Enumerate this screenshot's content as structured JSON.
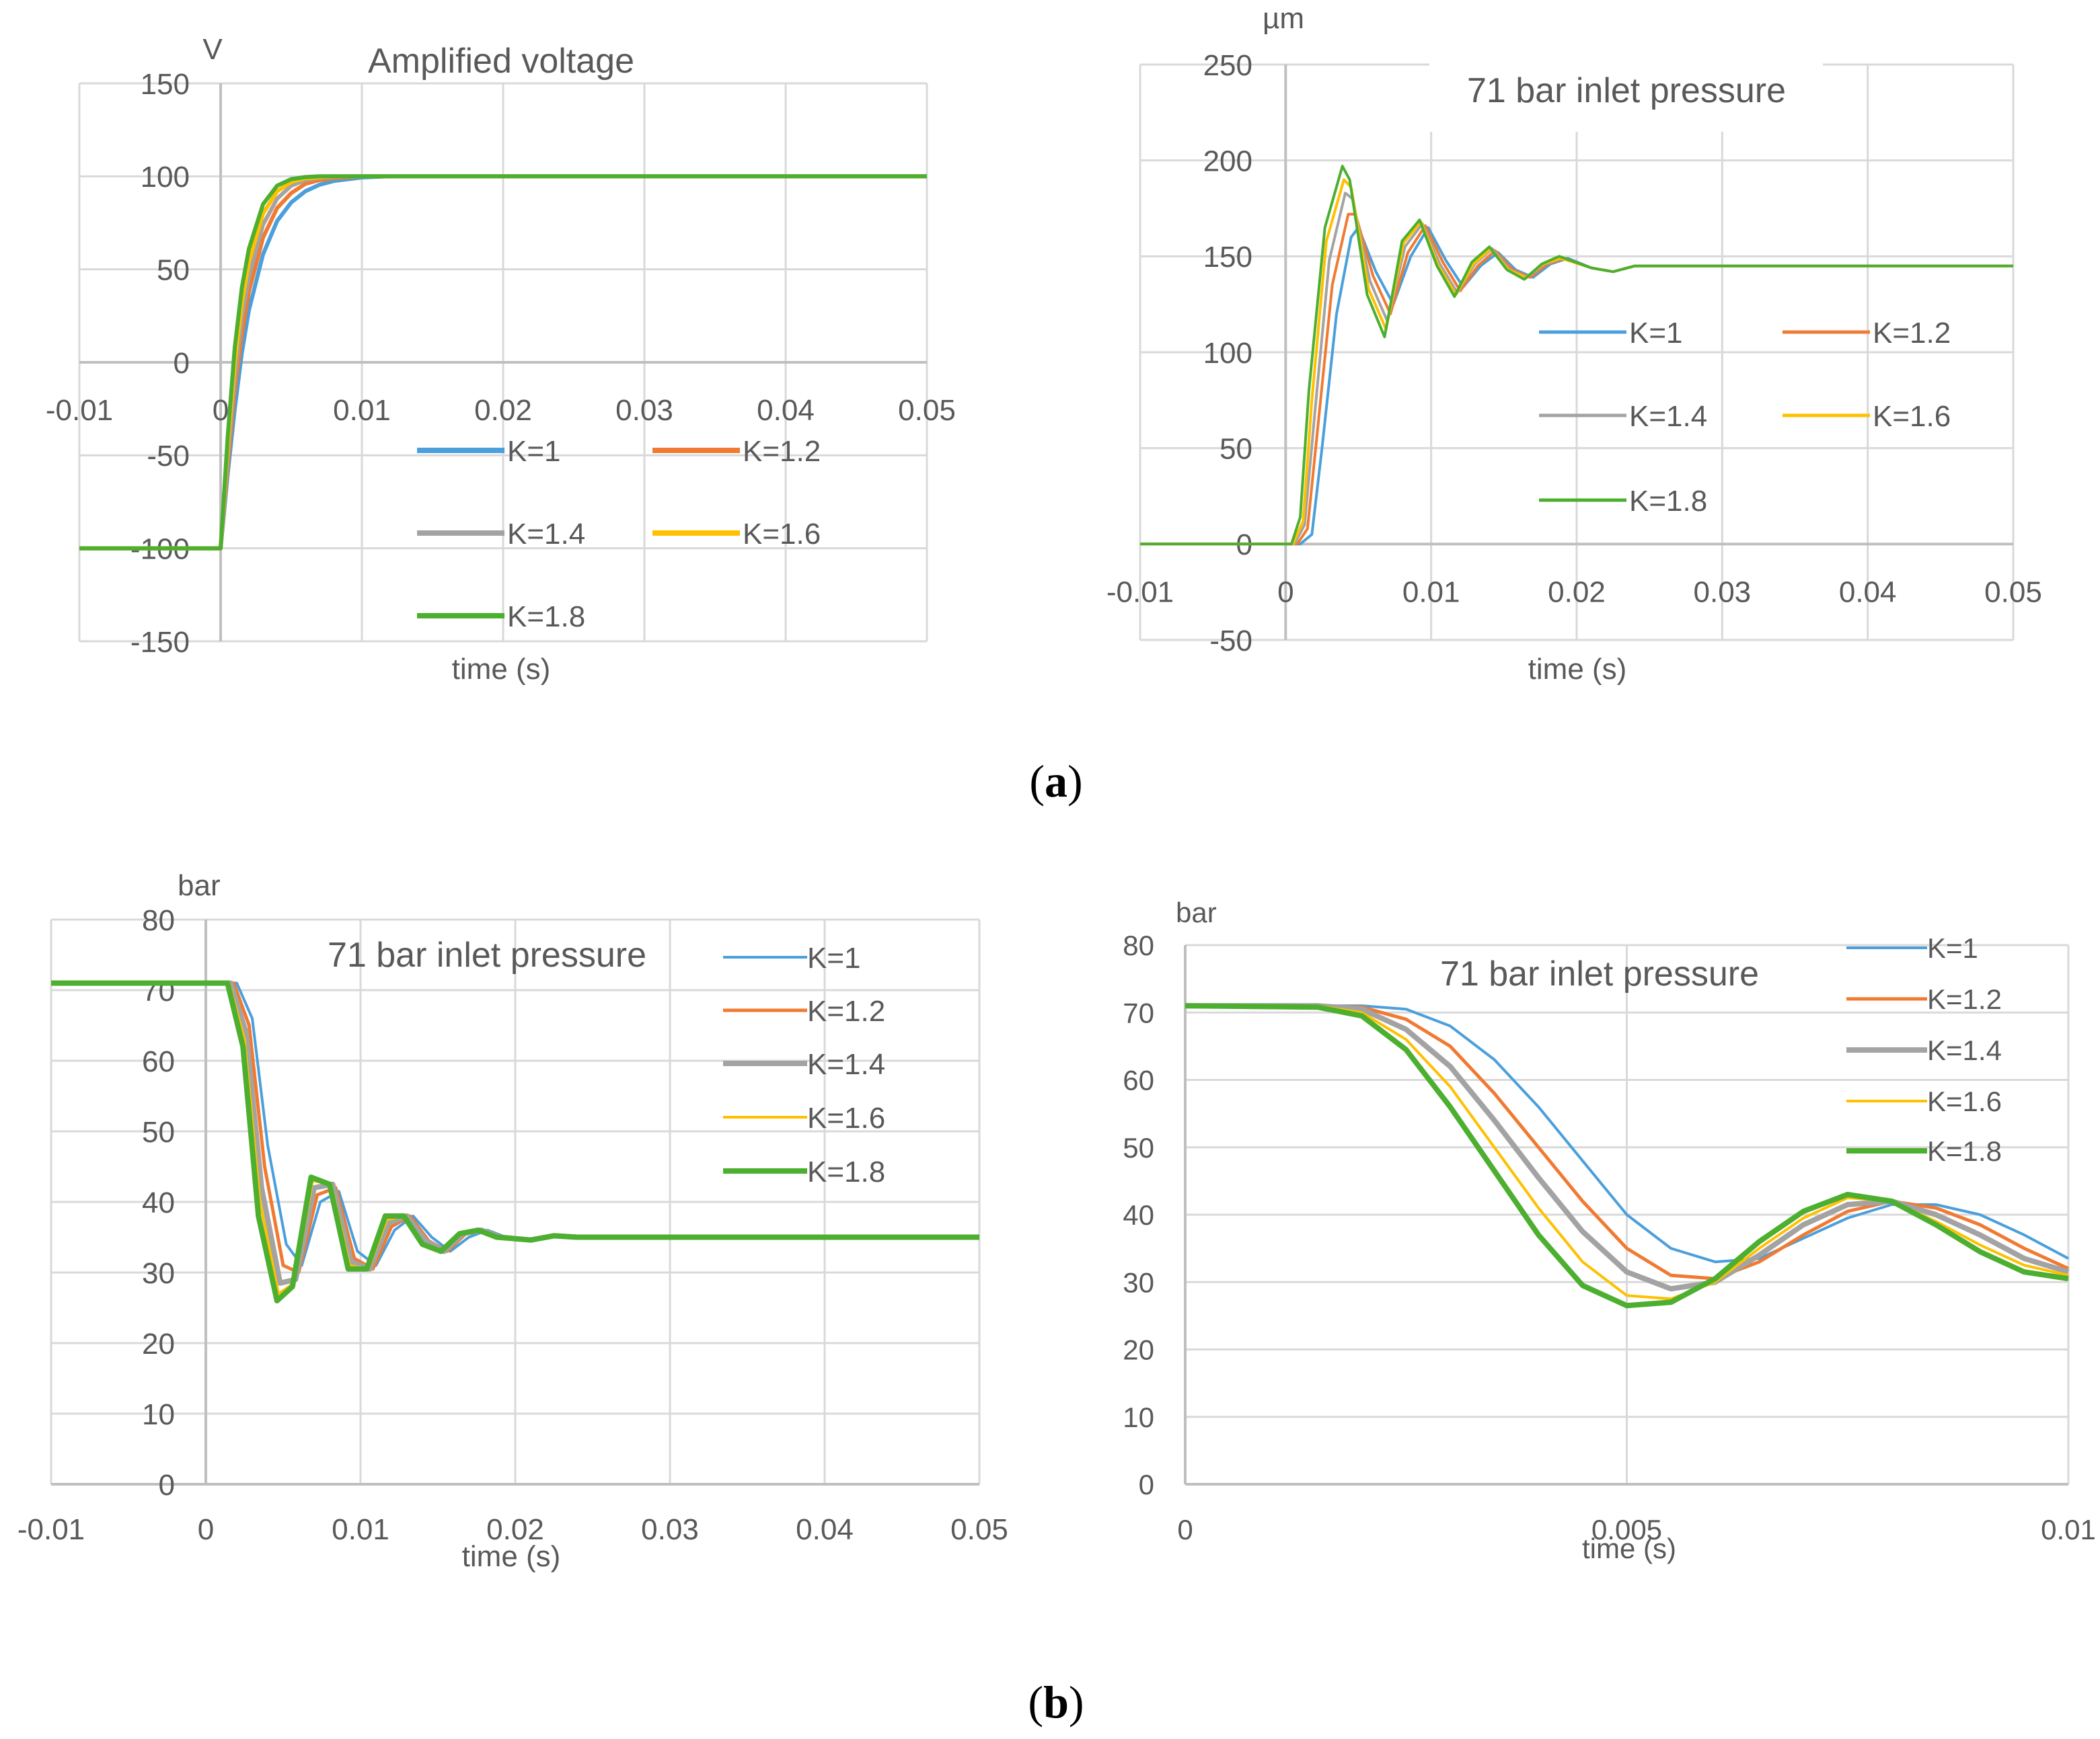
{
  "figure": {
    "label_a": "(a)",
    "label_b": "(b)",
    "label_a_bold": "a",
    "label_b_bold": "b"
  },
  "colors": {
    "K=1": "#4a9fdc",
    "K=1.2": "#f07a32",
    "K=1.4": "#a3a3a3",
    "K=1.6": "#ffc000",
    "K=1.8": "#4caf2f",
    "grid": "#d9d9d9",
    "axis": "#bfbfbf",
    "text": "#595959"
  },
  "chart_data": [
    {
      "id": "voltage",
      "type": "line",
      "title": "Amplified voltage",
      "unit_label": "V",
      "xlabel": "time (s)",
      "ylabel": "",
      "xlim": [
        -0.01,
        0.05
      ],
      "ylim": [
        -150,
        150
      ],
      "xticks": [
        -0.01,
        0,
        0.01,
        0.02,
        0.03,
        0.04,
        0.05
      ],
      "yticks": [
        -150,
        -100,
        -50,
        0,
        50,
        100,
        150
      ],
      "xtick_labels": [
        "-0.01",
        "0",
        "0.01",
        "0.02",
        "0.03",
        "0.04",
        "0.05"
      ],
      "ytick_labels": [
        "-150",
        "-100",
        "-50",
        "0",
        "50",
        "100",
        "150"
      ],
      "grid": true,
      "legend": "bottom-center, 2 columns",
      "series": [
        {
          "name": "K=1",
          "x": [
            -0.01,
            0,
            0.0005,
            0.001,
            0.0015,
            0.002,
            0.003,
            0.004,
            0.005,
            0.006,
            0.007,
            0.008,
            0.01,
            0.012,
            0.05
          ],
          "y": [
            -100,
            -100,
            -60,
            -25,
            5,
            28,
            58,
            76,
            86,
            92,
            95.5,
            97.5,
            99.4,
            100,
            100
          ]
        },
        {
          "name": "K=1.2",
          "x": [
            -0.01,
            0,
            0.0005,
            0.001,
            0.0015,
            0.002,
            0.003,
            0.004,
            0.005,
            0.006,
            0.007,
            0.008,
            0.01,
            0.05
          ],
          "y": [
            -100,
            -100,
            -55,
            -15,
            15,
            38,
            67,
            83,
            91,
            96,
            98,
            99,
            100,
            100
          ]
        },
        {
          "name": "K=1.4",
          "x": [
            -0.01,
            0,
            0.0005,
            0.001,
            0.0015,
            0.002,
            0.003,
            0.004,
            0.005,
            0.006,
            0.007,
            0.009,
            0.05
          ],
          "y": [
            -100,
            -100,
            -50,
            -8,
            24,
            46,
            74,
            88,
            95,
            98,
            99.3,
            100,
            100
          ]
        },
        {
          "name": "K=1.6",
          "x": [
            -0.01,
            0,
            0.0005,
            0.001,
            0.0015,
            0.002,
            0.003,
            0.004,
            0.005,
            0.006,
            0.008,
            0.05
          ],
          "y": [
            -100,
            -100,
            -45,
            0,
            32,
            54,
            80,
            92,
            97,
            99,
            100,
            100
          ]
        },
        {
          "name": "K=1.8",
          "x": [
            -0.01,
            0,
            0.0005,
            0.001,
            0.0015,
            0.002,
            0.003,
            0.004,
            0.005,
            0.006,
            0.007,
            0.05
          ],
          "y": [
            -100,
            -100,
            -40,
            8,
            40,
            61,
            85,
            95,
            98.5,
            99.6,
            100,
            100
          ]
        }
      ]
    },
    {
      "id": "displacement",
      "type": "line",
      "title": "71 bar inlet pressure",
      "unit_label": "µm",
      "xlabel": "time (s)",
      "ylabel": "",
      "xlim": [
        -0.01,
        0.05
      ],
      "ylim": [
        -50,
        250
      ],
      "xticks": [
        -0.01,
        0,
        0.01,
        0.02,
        0.03,
        0.04,
        0.05
      ],
      "yticks": [
        -50,
        0,
        50,
        100,
        150,
        200,
        250
      ],
      "xtick_labels": [
        "-0.01",
        "0",
        "0.01",
        "0.02",
        "0.03",
        "0.04",
        "0.05"
      ],
      "ytick_labels": [
        "-50",
        "0",
        "50",
        "100",
        "150",
        "200",
        "250"
      ],
      "grid": true,
      "legend": "center-right, 2 columns",
      "series": [
        {
          "name": "K=1",
          "x": [
            -0.01,
            0.001,
            0.0018,
            0.0025,
            0.0035,
            0.0045,
            0.005,
            0.0062,
            0.0074,
            0.0086,
            0.0098,
            0.011,
            0.0122,
            0.0134,
            0.0146,
            0.0158,
            0.017,
            0.0182,
            0.0194,
            0.021,
            0.0225,
            0.024,
            0.0265,
            0.05
          ],
          "y": [
            0,
            0,
            5,
            50,
            120,
            160,
            165,
            142,
            125,
            150,
            165,
            148,
            134,
            145,
            152,
            143,
            139,
            146,
            149,
            144,
            142,
            145,
            145,
            145
          ]
        },
        {
          "name": "K=1.2",
          "x": [
            -0.01,
            0.0008,
            0.0015,
            0.0022,
            0.0032,
            0.0043,
            0.0048,
            0.006,
            0.0072,
            0.0084,
            0.0096,
            0.0108,
            0.012,
            0.0132,
            0.0144,
            0.0156,
            0.0168,
            0.018,
            0.0192,
            0.021,
            0.0225,
            0.024,
            0.026,
            0.05
          ],
          "y": [
            0,
            0,
            8,
            60,
            135,
            172,
            172,
            140,
            120,
            152,
            166,
            147,
            132,
            145,
            153,
            143,
            139,
            146,
            149,
            144,
            142,
            145,
            145,
            145
          ]
        },
        {
          "name": "K=1.4",
          "x": [
            -0.01,
            0.0006,
            0.0013,
            0.002,
            0.003,
            0.0041,
            0.0046,
            0.0058,
            0.007,
            0.0082,
            0.0094,
            0.0106,
            0.0118,
            0.013,
            0.0142,
            0.0154,
            0.0166,
            0.0178,
            0.019,
            0.021,
            0.0225,
            0.024,
            0.026,
            0.05
          ],
          "y": [
            0,
            0,
            10,
            68,
            148,
            183,
            180,
            137,
            116,
            155,
            167,
            146,
            131,
            146,
            154,
            143,
            139,
            146,
            149,
            144,
            142,
            145,
            145,
            145
          ]
        },
        {
          "name": "K=1.6",
          "x": [
            -0.01,
            0.0005,
            0.0012,
            0.0018,
            0.0028,
            0.004,
            0.0045,
            0.0057,
            0.0069,
            0.0081,
            0.0093,
            0.0105,
            0.0117,
            0.0129,
            0.0141,
            0.0153,
            0.0165,
            0.0177,
            0.0189,
            0.021,
            0.0225,
            0.024,
            0.026,
            0.05
          ],
          "y": [
            0,
            0,
            12,
            75,
            158,
            190,
            186,
            133,
            112,
            157,
            168,
            145,
            130,
            146,
            154,
            143,
            139,
            146,
            149,
            144,
            142,
            145,
            145,
            145
          ]
        },
        {
          "name": "K=1.8",
          "x": [
            -0.01,
            0.0004,
            0.001,
            0.0016,
            0.0027,
            0.0039,
            0.0044,
            0.0056,
            0.0068,
            0.008,
            0.0092,
            0.0104,
            0.0116,
            0.0128,
            0.014,
            0.0152,
            0.0164,
            0.0176,
            0.0188,
            0.021,
            0.0225,
            0.024,
            0.026,
            0.05
          ],
          "y": [
            0,
            0,
            14,
            80,
            165,
            197,
            190,
            130,
            108,
            158,
            169,
            145,
            129,
            147,
            155,
            143,
            138,
            146,
            150,
            144,
            142,
            145,
            145,
            145
          ]
        }
      ]
    },
    {
      "id": "pressure_full",
      "type": "line",
      "title": "71 bar inlet pressure",
      "unit_label": "bar",
      "xlabel": "time (s)",
      "ylabel": "",
      "xlim": [
        -0.01,
        0.05
      ],
      "ylim": [
        0,
        80
      ],
      "xticks": [
        -0.01,
        0,
        0.01,
        0.02,
        0.03,
        0.04,
        0.05
      ],
      "yticks": [
        0,
        10,
        20,
        30,
        40,
        50,
        60,
        70,
        80
      ],
      "xtick_labels": [
        "-0.01",
        "0",
        "0.01",
        "0.02",
        "0.03",
        "0.04",
        "0.05"
      ],
      "ytick_labels": [
        "0",
        "10",
        "20",
        "30",
        "40",
        "50",
        "60",
        "70",
        "80"
      ],
      "grid": true,
      "legend": "top-right",
      "series": [
        {
          "name": "K=1",
          "x": [
            -0.01,
            0.002,
            0.003,
            0.004,
            0.0052,
            0.0062,
            0.0074,
            0.0086,
            0.0098,
            0.011,
            0.0122,
            0.0134,
            0.0146,
            0.0158,
            0.017,
            0.0182,
            0.0194,
            0.021,
            0.0225,
            0.024,
            0.026,
            0.05
          ],
          "y": [
            71,
            71,
            66,
            48,
            34,
            31,
            40,
            41.5,
            33,
            31,
            36,
            38,
            35,
            33,
            35,
            36,
            35,
            34.6,
            35.2,
            35,
            35,
            35
          ]
        },
        {
          "name": "K=1.2",
          "x": [
            -0.01,
            0.0018,
            0.0028,
            0.0038,
            0.005,
            0.006,
            0.0072,
            0.0084,
            0.0096,
            0.0108,
            0.012,
            0.0132,
            0.0144,
            0.0156,
            0.0168,
            0.018,
            0.0192,
            0.021,
            0.0225,
            0.024,
            0.026,
            0.05
          ],
          "y": [
            71,
            71,
            65,
            45,
            31,
            30,
            41,
            42,
            32,
            30.5,
            36.5,
            38,
            34.5,
            33,
            35.5,
            36,
            35,
            34.6,
            35.2,
            35,
            35,
            35
          ]
        },
        {
          "name": "K=1.4",
          "x": [
            -0.01,
            0.0016,
            0.0026,
            0.0036,
            0.0048,
            0.0058,
            0.007,
            0.0082,
            0.0094,
            0.0106,
            0.0118,
            0.013,
            0.0142,
            0.0154,
            0.0166,
            0.0178,
            0.019,
            0.021,
            0.0225,
            0.024,
            0.026,
            0.05
          ],
          "y": [
            71,
            71,
            64,
            42,
            28.5,
            29,
            42,
            42.5,
            31.5,
            30.5,
            37,
            38,
            34.5,
            33,
            35.5,
            36,
            35,
            34.6,
            35.2,
            35,
            35,
            35
          ]
        },
        {
          "name": "K=1.6",
          "x": [
            -0.01,
            0.0015,
            0.0025,
            0.0035,
            0.0047,
            0.0057,
            0.0069,
            0.0081,
            0.0093,
            0.0105,
            0.0117,
            0.0129,
            0.0141,
            0.0153,
            0.0165,
            0.0177,
            0.0189,
            0.021,
            0.0225,
            0.024,
            0.026,
            0.05
          ],
          "y": [
            71,
            71,
            63,
            40,
            27,
            28.5,
            43,
            42.5,
            31,
            30.5,
            37.5,
            38,
            34,
            33,
            35.5,
            36,
            35,
            34.6,
            35.2,
            35,
            35,
            35
          ]
        },
        {
          "name": "K=1.8",
          "x": [
            -0.01,
            0.0014,
            0.0024,
            0.0034,
            0.0046,
            0.0056,
            0.0068,
            0.008,
            0.0092,
            0.0104,
            0.0116,
            0.0128,
            0.014,
            0.0152,
            0.0164,
            0.0176,
            0.0188,
            0.021,
            0.0225,
            0.024,
            0.026,
            0.05
          ],
          "y": [
            71,
            71,
            62,
            38,
            26,
            28,
            43.5,
            42.5,
            30.5,
            30.5,
            38,
            38,
            34,
            33,
            35.5,
            36,
            35,
            34.6,
            35.2,
            35,
            35,
            35
          ]
        }
      ]
    },
    {
      "id": "pressure_zoom",
      "type": "line",
      "title": "71 bar inlet pressure",
      "unit_label": "bar",
      "xlabel": "time (s)",
      "ylabel": "",
      "xlim": [
        0,
        0.01
      ],
      "ylim": [
        0,
        80
      ],
      "xticks": [
        0,
        0.005,
        0.01
      ],
      "yticks": [
        0,
        10,
        20,
        30,
        40,
        50,
        60,
        70,
        80
      ],
      "xtick_labels": [
        "0",
        "0.005",
        "0.01"
      ],
      "ytick_labels": [
        "0",
        "10",
        "20",
        "30",
        "40",
        "50",
        "60",
        "70",
        "80"
      ],
      "grid": true,
      "legend": "top-right",
      "series": [
        {
          "name": "K=1",
          "x": [
            0,
            0.0015,
            0.002,
            0.0025,
            0.003,
            0.0035,
            0.004,
            0.0045,
            0.005,
            0.0055,
            0.006,
            0.0065,
            0.007,
            0.0075,
            0.008,
            0.0085,
            0.009,
            0.0095,
            0.01
          ],
          "y": [
            71,
            71,
            71,
            70.5,
            68,
            63,
            56,
            48,
            40,
            35,
            33,
            33.5,
            36.5,
            39.5,
            41.5,
            41.5,
            40,
            37,
            33.5
          ]
        },
        {
          "name": "K=1.2",
          "x": [
            0,
            0.0015,
            0.002,
            0.0025,
            0.003,
            0.0035,
            0.004,
            0.0045,
            0.005,
            0.0055,
            0.006,
            0.0065,
            0.007,
            0.0075,
            0.008,
            0.0085,
            0.009,
            0.0095,
            0.01
          ],
          "y": [
            71,
            71,
            70.8,
            69,
            65,
            58,
            50,
            42,
            35,
            31,
            30.5,
            33,
            37,
            40.5,
            42,
            41,
            38.5,
            35,
            32
          ]
        },
        {
          "name": "K=1.4",
          "x": [
            0,
            0.0015,
            0.002,
            0.0025,
            0.003,
            0.0035,
            0.004,
            0.0045,
            0.005,
            0.0055,
            0.006,
            0.0065,
            0.007,
            0.0075,
            0.008,
            0.0085,
            0.009,
            0.0095,
            0.01
          ],
          "y": [
            71,
            71,
            70.5,
            67.5,
            62,
            54,
            45.5,
            37.5,
            31.5,
            29,
            30,
            34,
            38.5,
            41.5,
            42,
            40,
            37,
            33.5,
            31.5
          ]
        },
        {
          "name": "K=1.6",
          "x": [
            0,
            0.0015,
            0.002,
            0.0025,
            0.003,
            0.0035,
            0.004,
            0.0045,
            0.005,
            0.0055,
            0.006,
            0.0065,
            0.007,
            0.0075,
            0.008,
            0.0085,
            0.009,
            0.0095,
            0.01
          ],
          "y": [
            71,
            71,
            70,
            66,
            59,
            50,
            41,
            33,
            28,
            27.5,
            30,
            35,
            39.5,
            42.5,
            42,
            39,
            35.5,
            32.5,
            31
          ]
        },
        {
          "name": "K=1.8",
          "x": [
            0,
            0.0015,
            0.002,
            0.0025,
            0.003,
            0.0035,
            0.004,
            0.0045,
            0.005,
            0.0055,
            0.006,
            0.0065,
            0.007,
            0.0075,
            0.008,
            0.0085,
            0.009,
            0.0095,
            0.01
          ],
          "y": [
            71,
            70.8,
            69.5,
            64.5,
            56,
            46.5,
            37,
            29.5,
            26.5,
            27,
            30.5,
            36,
            40.5,
            43,
            42,
            38.5,
            34.5,
            31.5,
            30.5
          ]
        }
      ]
    }
  ]
}
